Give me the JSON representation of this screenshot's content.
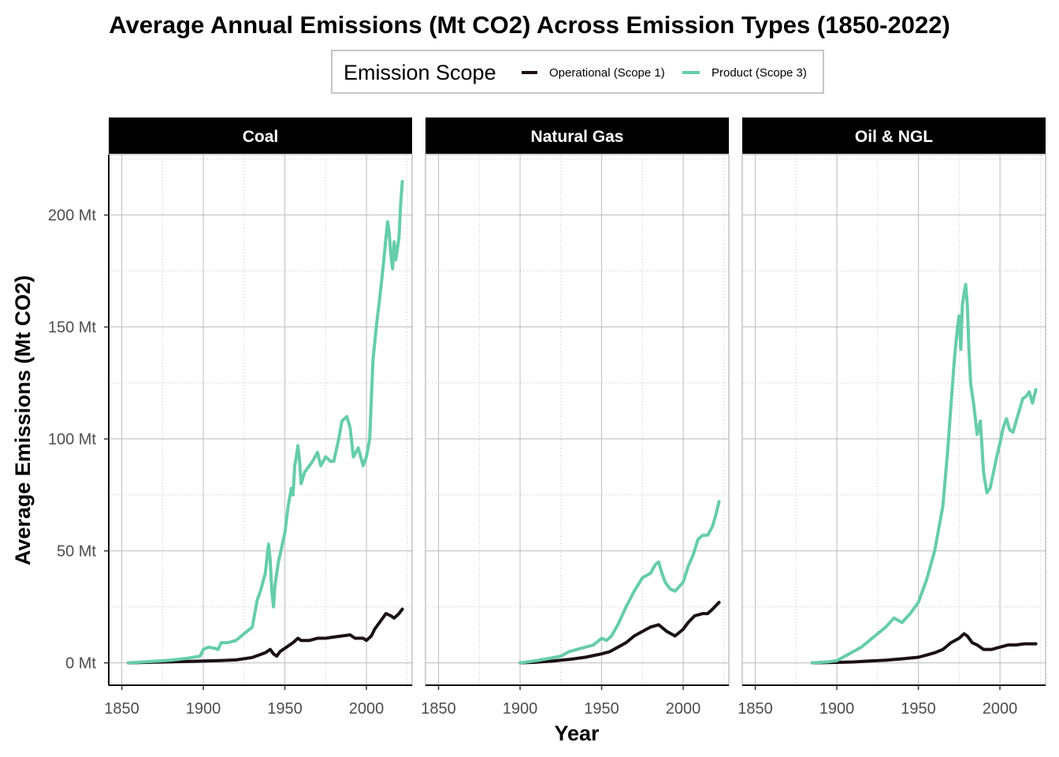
{
  "chart_data": {
    "type": "line",
    "title": "Average Annual Emissions (Mt CO2) Across Emission Types (1850-2022)",
    "xlabel": "Year",
    "ylabel": "Average Emissions (Mt CO2)",
    "xlim": [
      1842,
      2028
    ],
    "ylim": [
      -10,
      227
    ],
    "x_ticks": [
      1850,
      1900,
      1950,
      2000
    ],
    "x_tick_labels": [
      "1850",
      "1900",
      "1950",
      "2000"
    ],
    "y_ticks": [
      0,
      50,
      100,
      150,
      200
    ],
    "y_tick_labels": [
      "0 Mt",
      "50 Mt",
      "100 Mt",
      "150 Mt",
      "200 Mt"
    ],
    "y_minor_ticks": [
      25,
      75,
      125,
      175,
      225
    ],
    "x_minor_ticks": [
      1875,
      1925,
      1975,
      2025
    ],
    "grid": true,
    "legend": {
      "title": "Emission Scope",
      "position": "top",
      "entries": [
        {
          "label": "Operational (Scope 1)",
          "color": "#1a1016"
        },
        {
          "label": "Product (Scope 3)",
          "color": "#66cdaa"
        }
      ]
    },
    "panels": [
      {
        "name": "Coal",
        "series": [
          {
            "name": "Operational (Scope 1)",
            "color": "#1a1016",
            "points": [
              [
                1854,
                0
              ],
              [
                1870,
                0.3
              ],
              [
                1890,
                0.6
              ],
              [
                1900,
                0.8
              ],
              [
                1910,
                1.0
              ],
              [
                1920,
                1.3
              ],
              [
                1930,
                2.4
              ],
              [
                1938,
                4.5
              ],
              [
                1941,
                6
              ],
              [
                1943,
                4
              ],
              [
                1945,
                3
              ],
              [
                1947,
                5
              ],
              [
                1950,
                6.5
              ],
              [
                1955,
                9
              ],
              [
                1958,
                11
              ],
              [
                1960,
                10
              ],
              [
                1965,
                10
              ],
              [
                1970,
                11
              ],
              [
                1975,
                11
              ],
              [
                1980,
                11.5
              ],
              [
                1985,
                12
              ],
              [
                1990,
                12.5
              ],
              [
                1993,
                11
              ],
              [
                1998,
                11
              ],
              [
                2000,
                10
              ],
              [
                2003,
                12
              ],
              [
                2005,
                15
              ],
              [
                2008,
                18
              ],
              [
                2012,
                22
              ],
              [
                2015,
                21
              ],
              [
                2017,
                20
              ],
              [
                2020,
                22
              ],
              [
                2022,
                24
              ]
            ]
          },
          {
            "name": "Product (Scope 3)",
            "color": "#66cdaa",
            "points": [
              [
                1854,
                0
              ],
              [
                1865,
                0.5
              ],
              [
                1880,
                1.2
              ],
              [
                1890,
                2
              ],
              [
                1898,
                3
              ],
              [
                1900,
                6
              ],
              [
                1903,
                7
              ],
              [
                1907,
                6.5
              ],
              [
                1909,
                6
              ],
              [
                1911,
                9
              ],
              [
                1915,
                9
              ],
              [
                1920,
                10
              ],
              [
                1925,
                13
              ],
              [
                1930,
                16
              ],
              [
                1933,
                28
              ],
              [
                1935,
                32
              ],
              [
                1938,
                40
              ],
              [
                1940,
                53
              ],
              [
                1941,
                46
              ],
              [
                1942,
                32
              ],
              [
                1943,
                25
              ],
              [
                1944,
                35
              ],
              [
                1946,
                45
              ],
              [
                1950,
                58
              ],
              [
                1952,
                70
              ],
              [
                1954,
                78
              ],
              [
                1955,
                75
              ],
              [
                1956,
                88
              ],
              [
                1957,
                92
              ],
              [
                1958,
                97
              ],
              [
                1959,
                90
              ],
              [
                1960,
                80
              ],
              [
                1962,
                85
              ],
              [
                1965,
                88
              ],
              [
                1967,
                90
              ],
              [
                1970,
                94
              ],
              [
                1972,
                88
              ],
              [
                1975,
                92
              ],
              [
                1978,
                90
              ],
              [
                1980,
                90
              ],
              [
                1983,
                100
              ],
              [
                1985,
                108
              ],
              [
                1988,
                110
              ],
              [
                1990,
                105
              ],
              [
                1992,
                92
              ],
              [
                1995,
                96
              ],
              [
                1998,
                88
              ],
              [
                2000,
                92
              ],
              [
                2002,
                100
              ],
              [
                2004,
                135
              ],
              [
                2006,
                150
              ],
              [
                2008,
                162
              ],
              [
                2010,
                175
              ],
              [
                2012,
                190
              ],
              [
                2013,
                197
              ],
              [
                2014,
                192
              ],
              [
                2015,
                182
              ],
              [
                2016,
                176
              ],
              [
                2017,
                188
              ],
              [
                2018,
                180
              ],
              [
                2019,
                185
              ],
              [
                2020,
                190
              ],
              [
                2021,
                205
              ],
              [
                2022,
                215
              ]
            ]
          }
        ]
      },
      {
        "name": "Natural Gas",
        "series": [
          {
            "name": "Operational (Scope 1)",
            "color": "#1a1016",
            "points": [
              [
                1900,
                0
              ],
              [
                1910,
                0.3
              ],
              [
                1920,
                0.8
              ],
              [
                1930,
                1.5
              ],
              [
                1940,
                2.5
              ],
              [
                1950,
                4
              ],
              [
                1955,
                5
              ],
              [
                1960,
                7
              ],
              [
                1965,
                9
              ],
              [
                1970,
                12
              ],
              [
                1975,
                14
              ],
              [
                1980,
                16
              ],
              [
                1985,
                17
              ],
              [
                1990,
                14
              ],
              [
                1995,
                12
              ],
              [
                2000,
                15
              ],
              [
                2003,
                18
              ],
              [
                2007,
                21
              ],
              [
                2012,
                22
              ],
              [
                2015,
                22
              ],
              [
                2018,
                24
              ],
              [
                2022,
                27
              ]
            ]
          },
          {
            "name": "Product (Scope 3)",
            "color": "#66cdaa",
            "points": [
              [
                1900,
                0
              ],
              [
                1910,
                1
              ],
              [
                1918,
                2
              ],
              [
                1925,
                3
              ],
              [
                1930,
                5
              ],
              [
                1935,
                6
              ],
              [
                1940,
                7
              ],
              [
                1945,
                8
              ],
              [
                1950,
                11
              ],
              [
                1953,
                10
              ],
              [
                1956,
                12
              ],
              [
                1960,
                17
              ],
              [
                1965,
                25
              ],
              [
                1970,
                32
              ],
              [
                1975,
                38
              ],
              [
                1980,
                40
              ],
              [
                1983,
                44
              ],
              [
                1985,
                45
              ],
              [
                1987,
                40
              ],
              [
                1989,
                36
              ],
              [
                1992,
                33
              ],
              [
                1995,
                32
              ],
              [
                2000,
                36
              ],
              [
                2003,
                43
              ],
              [
                2006,
                48
              ],
              [
                2009,
                55
              ],
              [
                2012,
                57
              ],
              [
                2015,
                57
              ],
              [
                2018,
                61
              ],
              [
                2020,
                66
              ],
              [
                2022,
                72
              ]
            ]
          }
        ]
      },
      {
        "name": "Oil & NGL",
        "series": [
          {
            "name": "Operational (Scope 1)",
            "color": "#1a1016",
            "points": [
              [
                1885,
                0
              ],
              [
                1900,
                0.2
              ],
              [
                1910,
                0.4
              ],
              [
                1920,
                0.8
              ],
              [
                1930,
                1.2
              ],
              [
                1940,
                1.8
              ],
              [
                1950,
                2.5
              ],
              [
                1955,
                3.5
              ],
              [
                1960,
                4.5
              ],
              [
                1965,
                6
              ],
              [
                1970,
                9
              ],
              [
                1975,
                11
              ],
              [
                1978,
                13
              ],
              [
                1980,
                12
              ],
              [
                1983,
                9
              ],
              [
                1986,
                8
              ],
              [
                1990,
                6
              ],
              [
                1995,
                6
              ],
              [
                2000,
                7
              ],
              [
                2005,
                8
              ],
              [
                2010,
                8
              ],
              [
                2015,
                8.5
              ],
              [
                2020,
                8.5
              ],
              [
                2022,
                8.5
              ]
            ]
          },
          {
            "name": "Product (Scope 3)",
            "color": "#66cdaa",
            "points": [
              [
                1885,
                0
              ],
              [
                1895,
                0.5
              ],
              [
                1900,
                1
              ],
              [
                1905,
                3
              ],
              [
                1910,
                5
              ],
              [
                1915,
                7
              ],
              [
                1920,
                10
              ],
              [
                1925,
                13
              ],
              [
                1930,
                16
              ],
              [
                1935,
                20
              ],
              [
                1940,
                18
              ],
              [
                1945,
                22
              ],
              [
                1950,
                27
              ],
              [
                1955,
                37
              ],
              [
                1960,
                50
              ],
              [
                1965,
                70
              ],
              [
                1968,
                95
              ],
              [
                1970,
                115
              ],
              [
                1972,
                135
              ],
              [
                1974,
                150
              ],
              [
                1975,
                155
              ],
              [
                1976,
                140
              ],
              [
                1977,
                160
              ],
              [
                1978,
                165
              ],
              [
                1979,
                169
              ],
              [
                1980,
                160
              ],
              [
                1981,
                140
              ],
              [
                1982,
                125
              ],
              [
                1984,
                115
              ],
              [
                1986,
                102
              ],
              [
                1988,
                108
              ],
              [
                1990,
                85
              ],
              [
                1992,
                76
              ],
              [
                1994,
                78
              ],
              [
                1996,
                85
              ],
              [
                1998,
                92
              ],
              [
                2000,
                98
              ],
              [
                2002,
                105
              ],
              [
                2004,
                109
              ],
              [
                2006,
                104
              ],
              [
                2008,
                103
              ],
              [
                2010,
                108
              ],
              [
                2012,
                113
              ],
              [
                2014,
                118
              ],
              [
                2016,
                119
              ],
              [
                2018,
                121
              ],
              [
                2020,
                116
              ],
              [
                2022,
                122
              ]
            ]
          }
        ]
      }
    ]
  }
}
